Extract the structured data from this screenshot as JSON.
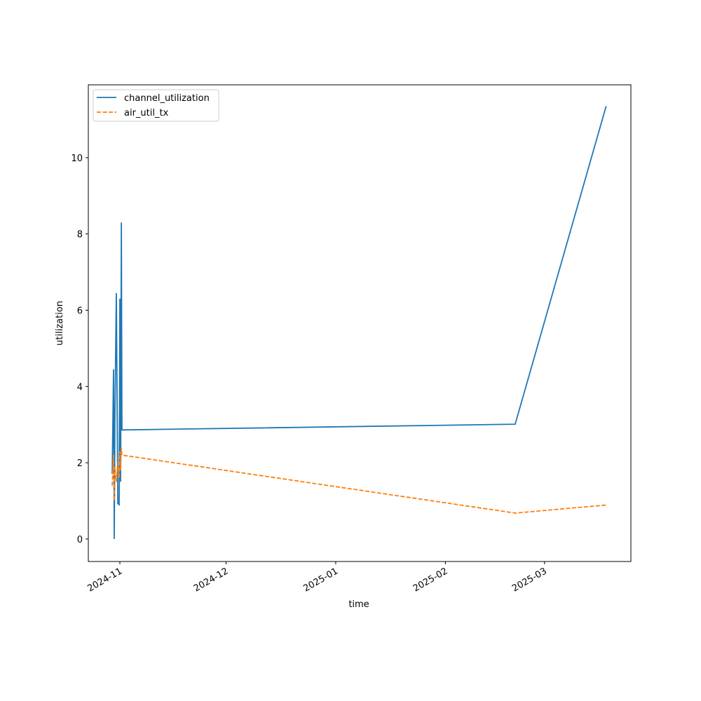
{
  "chart_data": {
    "type": "line",
    "xlabel": "time",
    "ylabel": "utilization",
    "x": [
      "2024-10-29T20:00",
      "2024-10-30T05:00",
      "2024-10-30T10:00",
      "2024-10-30T14:00",
      "2024-10-31T00:00",
      "2024-10-31T10:00",
      "2024-10-31T19:00",
      "2024-11-01T00:00",
      "2024-11-01T05:00",
      "2024-11-01T10:00",
      "2024-11-01T14:00",
      "2025-02-20T17:00",
      "2025-03-18T10:00"
    ],
    "series": [
      {
        "name": "channel_utilization",
        "color": "#1f77b4",
        "dash": "solid",
        "values": [
          1.7,
          4.45,
          0.0,
          3.1,
          6.45,
          0.93,
          0.9,
          6.3,
          1.5,
          8.3,
          2.86,
          3.01,
          11.35
        ]
      },
      {
        "name": "air_util_tx",
        "color": "#ff7f0e",
        "dash": "dashed",
        "values": [
          1.4,
          2.2,
          1.0,
          1.9,
          1.5,
          2.0,
          1.6,
          2.3,
          1.8,
          2.4,
          2.2,
          0.68,
          0.89
        ]
      }
    ],
    "xlim": [
      "2024-10-23T02:00",
      "2025-03-25T10:00"
    ],
    "xticks": [
      {
        "value": "2024-11-01T00:00",
        "label": "2024-11"
      },
      {
        "value": "2024-12-01T00:00",
        "label": "2024-12"
      },
      {
        "value": "2025-01-01T00:00",
        "label": "2025-01"
      },
      {
        "value": "2025-02-01T00:00",
        "label": "2025-02"
      },
      {
        "value": "2025-03-01T00:00",
        "label": "2025-03"
      }
    ],
    "ylim": [
      -0.59,
      11.91
    ],
    "yticks": [
      0,
      2,
      4,
      6,
      8,
      10
    ],
    "legend": "upper left"
  }
}
